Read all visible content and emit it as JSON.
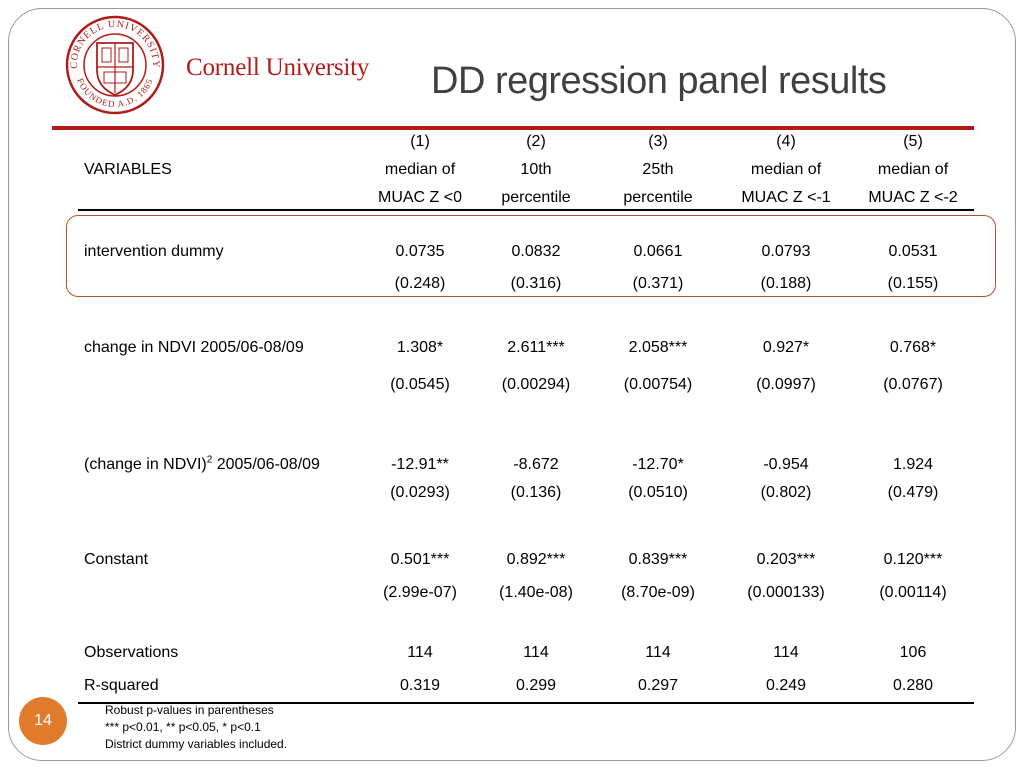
{
  "header": {
    "brand": "Cornell University",
    "title": "DD regression panel results"
  },
  "seal": {
    "upper_text": "CORNELL UNIVERSITY",
    "lower_text": "FOUNDED A.D. 1865"
  },
  "table": {
    "variables_label": "VARIABLES",
    "columns": [
      {
        "num": "(1)",
        "line1": "median of",
        "line2": "MUAC Z <0"
      },
      {
        "num": "(2)",
        "line1": "10th",
        "line2": "percentile"
      },
      {
        "num": "(3)",
        "line1": "25th",
        "line2": "percentile"
      },
      {
        "num": "(4)",
        "line1": "median of",
        "line2": "MUAC Z <-1"
      },
      {
        "num": "(5)",
        "line1": "median of",
        "line2": "MUAC Z <-2"
      }
    ],
    "rows": [
      {
        "label": "intervention dummy",
        "coef": [
          "0.0735",
          "0.0832",
          "0.0661",
          "0.0793",
          "0.0531"
        ],
        "se": [
          "(0.248)",
          "(0.316)",
          "(0.371)",
          "(0.188)",
          "(0.155)"
        ]
      },
      {
        "label": "change in NDVI 2005/06-08/09",
        "coef": [
          "1.308*",
          "2.611***",
          "2.058***",
          "0.927*",
          "0.768*"
        ],
        "se": [
          "(0.0545)",
          "(0.00294)",
          "(0.00754)",
          "(0.0997)",
          "(0.0767)"
        ]
      },
      {
        "label_pre": "(change in NDVI)",
        "label_sup": "2",
        "label_post": " 2005/06-08/09",
        "coef": [
          "-12.91**",
          "-8.672",
          "-12.70*",
          "-0.954",
          "1.924"
        ],
        "se": [
          "(0.0293)",
          "(0.136)",
          "(0.0510)",
          "(0.802)",
          "(0.479)"
        ]
      },
      {
        "label": "Constant",
        "coef": [
          "0.501***",
          "0.892***",
          "0.839***",
          "0.203***",
          "0.120***"
        ],
        "se": [
          "(2.99e-07)",
          "(1.40e-08)",
          "(8.70e-09)",
          "(0.000133)",
          "(0.00114)"
        ]
      }
    ],
    "observations": {
      "label": "Observations",
      "values": [
        "114",
        "114",
        "114",
        "114",
        "106"
      ]
    },
    "rsquared": {
      "label": "R-squared",
      "values": [
        "0.319",
        "0.299",
        "0.297",
        "0.249",
        "0.280"
      ]
    }
  },
  "notes": [
    "Robust p-values in parentheses",
    "*** p<0.01, ** p<0.05, * p<0.1",
    "District dummy variables included."
  ],
  "page_number": "14",
  "colors": {
    "brand_red": "#b31b1b",
    "title_gray": "#404040",
    "highlight_border": "#b5532a",
    "page_badge": "#e07b2c"
  }
}
